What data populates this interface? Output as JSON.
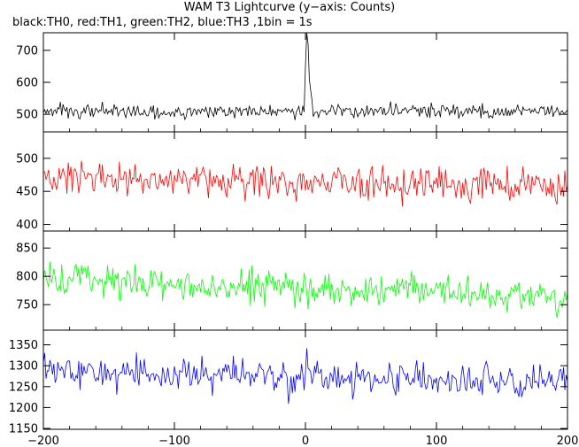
{
  "chart_data": {
    "type": "line",
    "title": "WAM T3 Lightcurve (y−axis: Counts)",
    "subtitle": "black:TH0, red:TH1, green:TH2, blue:TH3 ,1bin = 1s",
    "xlim": [
      -200,
      200
    ],
    "x_ticks": [
      -200,
      -100,
      0,
      100,
      200
    ],
    "x_tick_labels": [
      "−200",
      "−100",
      "0",
      "100",
      "200"
    ],
    "bin_seconds": 1,
    "panels": [
      {
        "name": "TH0",
        "color": "#000000",
        "ylim": [
          445,
          755
        ],
        "y_ticks": [
          500,
          600,
          700
        ],
        "baseline": 510,
        "noise": 19,
        "trend": 0,
        "features": [
          {
            "x": 1,
            "value": 755
          },
          {
            "x": 2,
            "value": 720
          },
          {
            "x": 3,
            "value": 610
          },
          {
            "x": 4,
            "value": 575
          },
          {
            "x": 5,
            "value": 545
          },
          {
            "x": 0,
            "value": 650
          }
        ]
      },
      {
        "name": "TH1",
        "color": "#ff0000",
        "ylim": [
          390,
          540
        ],
        "y_ticks": [
          400,
          450,
          500
        ],
        "baseline": 470,
        "noise": 21,
        "trend": -12,
        "features": []
      },
      {
        "name": "TH2",
        "color": "#00ff00",
        "ylim": [
          705,
          880
        ],
        "y_ticks": [
          750,
          800,
          850
        ],
        "baseline": 795,
        "noise": 25,
        "trend": -32,
        "features": []
      },
      {
        "name": "TH3",
        "color": "#0000ff",
        "ylim": [
          1148,
          1385
        ],
        "y_ticks": [
          1150,
          1200,
          1250,
          1300,
          1350
        ],
        "baseline": 1285,
        "noise": 33,
        "trend": -25,
        "features": []
      }
    ]
  }
}
